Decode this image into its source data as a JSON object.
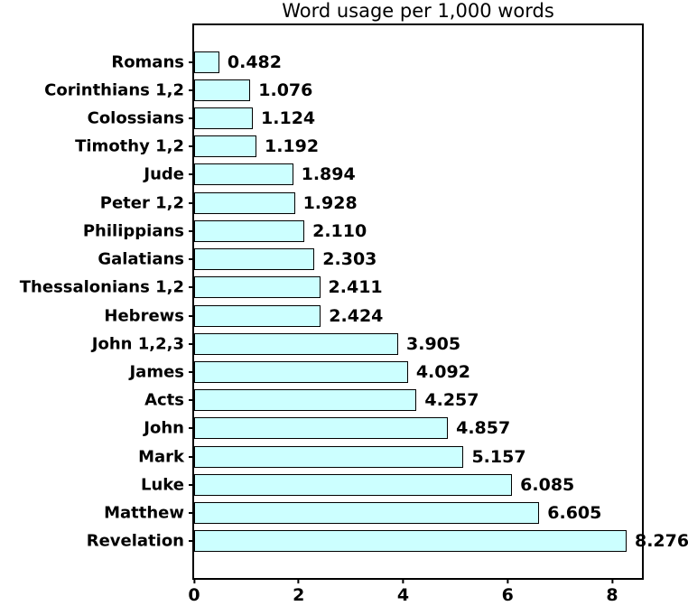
{
  "chart_data": {
    "type": "bar",
    "orientation": "horizontal",
    "title": "Word usage per 1,000 words",
    "categories": [
      "Romans",
      "Corinthians 1,2",
      "Colossians",
      "Timothy 1,2",
      "Jude",
      "Peter 1,2",
      "Philippians",
      "Galatians",
      "Thessalonians 1,2",
      "Hebrews",
      "John 1,2,3",
      "James",
      "Acts",
      "John",
      "Mark",
      "Luke",
      "Matthew",
      "Revelation"
    ],
    "values": [
      0.482,
      1.076,
      1.124,
      1.192,
      1.894,
      1.928,
      2.11,
      2.303,
      2.411,
      2.424,
      3.905,
      4.092,
      4.257,
      4.857,
      5.157,
      6.085,
      6.605,
      8.276
    ],
    "value_labels": [
      "0.482",
      "1.076",
      "1.124",
      "1.192",
      "1.894",
      "1.928",
      "2.110",
      "2.303",
      "2.411",
      "2.424",
      "3.905",
      "4.092",
      "4.257",
      "4.857",
      "5.157",
      "6.085",
      "6.605",
      "8.276"
    ],
    "xlabel": "",
    "ylabel": "",
    "xlim": [
      0,
      8.57
    ],
    "xticks": [
      0,
      2,
      4,
      6,
      8
    ],
    "xtick_labels": [
      "0",
      "2",
      "4",
      "6",
      "8"
    ],
    "grid": false,
    "legend": null,
    "bar_color": "#CCFFFF",
    "bar_border_color": "#000000",
    "axis_color": "#000000",
    "background_color": "#FFFFFF"
  }
}
